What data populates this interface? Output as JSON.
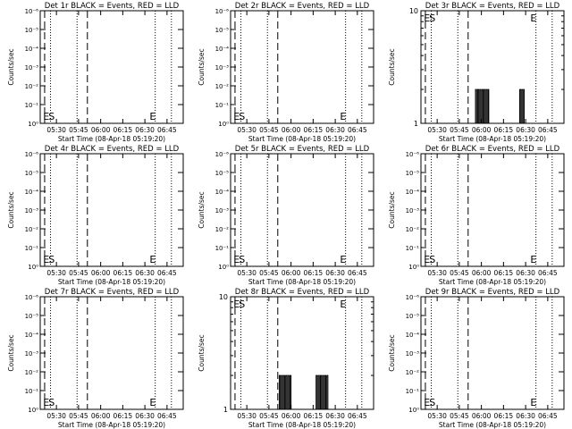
{
  "figure": {
    "x_ticks": [
      "05:30",
      "05:45",
      "06:00",
      "06:15",
      "06:30",
      "06:45"
    ],
    "x_label": "Start Time (08-Apr-18 05:19:20)",
    "y_label": "Counts/sec"
  },
  "chart_data": [
    {
      "type": "line",
      "title": "Det 1r BLACK = Events, RED = LLD",
      "scale": "log",
      "ytick_labels": [
        "10⁰",
        "10⁻¹",
        "10⁻²",
        "10⁻³",
        "10⁻⁴",
        "10⁻⁵",
        "10⁻⁶"
      ],
      "markers": [
        {
          "label": "E",
          "x": "05:21"
        },
        {
          "label": "S",
          "x": "05:22"
        },
        {
          "label": "E",
          "x": "06:35"
        }
      ],
      "series": []
    },
    {
      "type": "line",
      "title": "Det 2r BLACK = Events, RED = LLD",
      "scale": "log",
      "ytick_labels": [
        "10⁰",
        "10⁻¹",
        "10⁻²",
        "10⁻³",
        "10⁻⁴",
        "10⁻⁵",
        "10⁻⁶"
      ],
      "markers": [
        {
          "label": "E",
          "x": "05:21"
        },
        {
          "label": "S",
          "x": "05:22"
        },
        {
          "label": "E",
          "x": "06:35"
        }
      ],
      "series": []
    },
    {
      "type": "line",
      "title": "Det 3r BLACK = Events, RED = LLD",
      "scale": "log",
      "ytick_labels": [
        "1",
        "10"
      ],
      "markers": [
        {
          "label": "E",
          "x": "05:21"
        },
        {
          "label": "S",
          "x": "05:22"
        },
        {
          "label": "E",
          "x": "06:35"
        }
      ],
      "series": [
        {
          "segments": [
            [
              "05:56",
              "06:05"
            ],
            [
              "06:26",
              "06:29"
            ]
          ],
          "low": 1,
          "high": 2
        }
      ]
    },
    {
      "type": "line",
      "title": "Det 4r BLACK = Events, RED = LLD",
      "scale": "log",
      "ytick_labels": [
        "10⁰",
        "10⁻¹",
        "10⁻²",
        "10⁻³",
        "10⁻⁴",
        "10⁻⁵",
        "10⁻⁶"
      ],
      "markers": [
        {
          "label": "E",
          "x": "05:21"
        },
        {
          "label": "S",
          "x": "05:22"
        },
        {
          "label": "E",
          "x": "06:35"
        }
      ],
      "series": []
    },
    {
      "type": "line",
      "title": "Det 5r BLACK = Events, RED = LLD",
      "scale": "log",
      "ytick_labels": [
        "10⁰",
        "10⁻¹",
        "10⁻²",
        "10⁻³",
        "10⁻⁴",
        "10⁻⁵",
        "10⁻⁶"
      ],
      "markers": [
        {
          "label": "E",
          "x": "05:21"
        },
        {
          "label": "S",
          "x": "05:22"
        },
        {
          "label": "E",
          "x": "06:35"
        }
      ],
      "series": []
    },
    {
      "type": "line",
      "title": "Det 6r BLACK = Events, RED = LLD",
      "scale": "log",
      "ytick_labels": [
        "10⁰",
        "10⁻¹",
        "10⁻²",
        "10⁻³",
        "10⁻⁴",
        "10⁻⁵",
        "10⁻⁶"
      ],
      "markers": [
        {
          "label": "E",
          "x": "05:21"
        },
        {
          "label": "S",
          "x": "05:22"
        },
        {
          "label": "E",
          "x": "06:35"
        }
      ],
      "series": []
    },
    {
      "type": "line",
      "title": "Det 7r BLACK = Events, RED = LLD",
      "scale": "log",
      "ytick_labels": [
        "10⁰",
        "10⁻¹",
        "10⁻²",
        "10⁻³",
        "10⁻⁴",
        "10⁻⁵",
        "10⁻⁶"
      ],
      "markers": [
        {
          "label": "E",
          "x": "05:21"
        },
        {
          "label": "S",
          "x": "05:22"
        },
        {
          "label": "E",
          "x": "06:35"
        }
      ],
      "series": []
    },
    {
      "type": "line",
      "title": "Det 8r BLACK = Events, RED = LLD",
      "scale": "log",
      "ytick_labels": [
        "1",
        "10"
      ],
      "markers": [
        {
          "label": "E",
          "x": "05:21"
        },
        {
          "label": "S",
          "x": "05:22"
        },
        {
          "label": "E",
          "x": "06:35"
        }
      ],
      "series": [
        {
          "segments": [
            [
              "05:52",
              "06:00"
            ],
            [
              "06:17",
              "06:25"
            ]
          ],
          "low": 1,
          "high": 2
        }
      ]
    },
    {
      "type": "line",
      "title": "Det 9r BLACK = Events, RED = LLD",
      "scale": "log",
      "ytick_labels": [
        "10⁰",
        "10⁻¹",
        "10⁻²",
        "10⁻³",
        "10⁻⁴",
        "10⁻⁵",
        "10⁻⁶"
      ],
      "markers": [
        {
          "label": "E",
          "x": "05:21"
        },
        {
          "label": "S",
          "x": "05:22"
        },
        {
          "label": "E",
          "x": "06:35"
        }
      ],
      "series": []
    }
  ]
}
